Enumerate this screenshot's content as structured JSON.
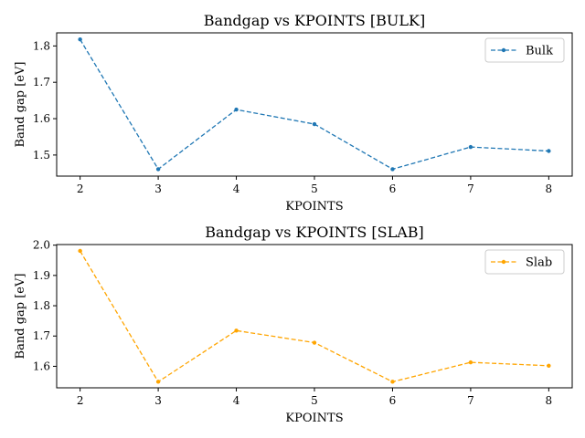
{
  "chart_data": [
    {
      "type": "line",
      "title": "Bandgap vs KPOINTS [BULK]",
      "xlabel": "KPOINTS",
      "ylabel": "Band gap [eV]",
      "x": [
        2,
        3,
        4,
        5,
        6,
        7,
        8
      ],
      "xlim": [
        1.7,
        8.3
      ],
      "ylim": [
        1.442,
        1.836
      ],
      "xticks": [
        2,
        3,
        4,
        5,
        6,
        7,
        8
      ],
      "yticks": [
        1.5,
        1.6,
        1.7,
        1.8
      ],
      "grid": false,
      "legend_position": "upper right",
      "series": [
        {
          "name": "Bulk",
          "values": [
            1.818,
            1.461,
            1.625,
            1.585,
            1.461,
            1.522,
            1.511
          ],
          "color": "#1f77b4",
          "linestyle": "dashed",
          "marker": "point"
        }
      ]
    },
    {
      "type": "line",
      "title": "Bandgap vs KPOINTS [SLAB]",
      "xlabel": "KPOINTS",
      "ylabel": "Band gap [eV]",
      "x": [
        2,
        3,
        4,
        5,
        6,
        7,
        8
      ],
      "xlim": [
        1.7,
        8.3
      ],
      "ylim": [
        1.529,
        2.002
      ],
      "xticks": [
        2,
        3,
        4,
        5,
        6,
        7,
        8
      ],
      "yticks": [
        1.6,
        1.7,
        1.8,
        1.9,
        2.0
      ],
      "grid": false,
      "legend_position": "upper right",
      "series": [
        {
          "name": "Slab",
          "values": [
            1.981,
            1.549,
            1.718,
            1.678,
            1.549,
            1.613,
            1.602
          ],
          "color": "#ffa500",
          "linestyle": "dashed",
          "marker": "point"
        }
      ]
    }
  ]
}
